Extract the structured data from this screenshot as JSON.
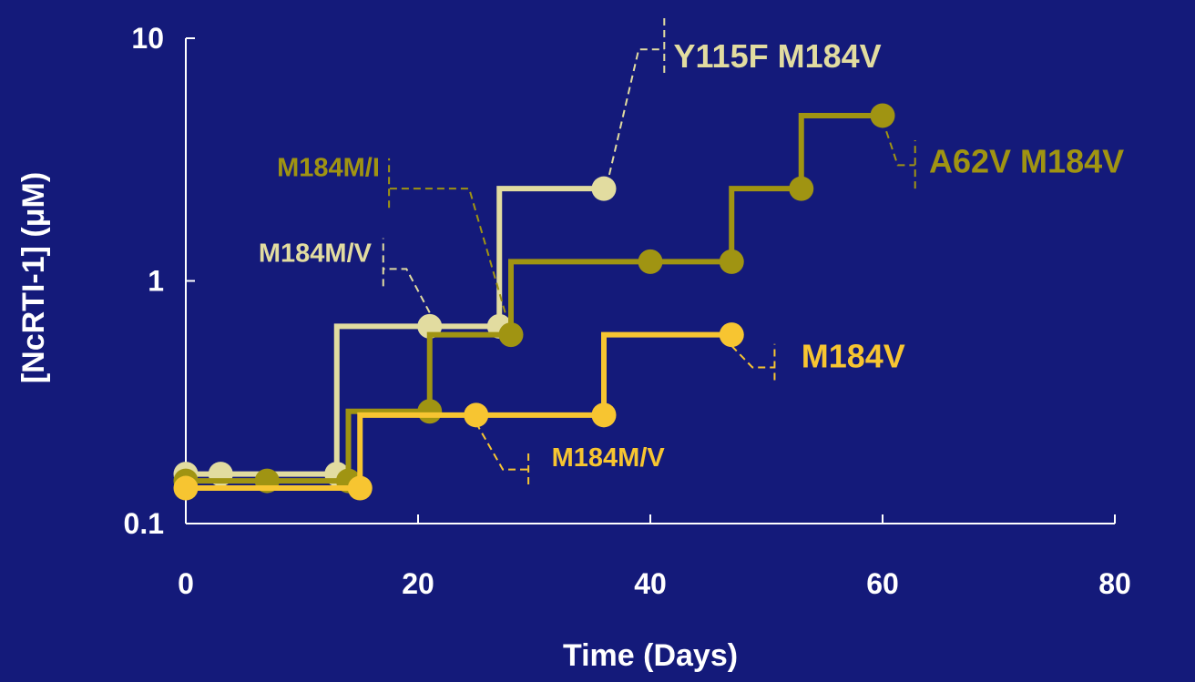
{
  "chart_data": {
    "type": "line",
    "step": true,
    "title": "",
    "xlabel": "Time (Days)",
    "ylabel": "[NcRTI-1] (μM)",
    "xlim": [
      0,
      80
    ],
    "ylim": [
      0.1,
      10
    ],
    "yscale": "log",
    "x_ticks": [
      {
        "value": 0,
        "label": "0"
      },
      {
        "value": 20,
        "label": "20"
      },
      {
        "value": 40,
        "label": "40"
      },
      {
        "value": 60,
        "label": "60"
      },
      {
        "value": 80,
        "label": "80"
      }
    ],
    "y_ticks": [
      {
        "value": 0.1,
        "label": "0.1"
      },
      {
        "value": 1,
        "label": "1"
      },
      {
        "value": 10,
        "label": "10"
      }
    ],
    "grid": false,
    "background": "#141a7a",
    "series": [
      {
        "color": "#e2dca0",
        "points": [
          [
            0,
            0.16
          ],
          [
            3,
            0.16
          ],
          [
            13,
            0.16
          ],
          [
            21,
            0.65
          ],
          [
            27,
            0.65
          ],
          [
            36,
            2.4
          ]
        ],
        "jumps": [
          [
            13,
            0.65
          ],
          [
            27,
            2.4
          ]
        ]
      },
      {
        "color": "#a09412",
        "points": [
          [
            0,
            0.15
          ],
          [
            7,
            0.15
          ],
          [
            14,
            0.15
          ],
          [
            21,
            0.29
          ],
          [
            28,
            0.6
          ],
          [
            40,
            1.2
          ],
          [
            47,
            1.2
          ],
          [
            53,
            2.4
          ],
          [
            60,
            4.8
          ]
        ],
        "jumps": [
          [
            14,
            0.29
          ],
          [
            21,
            0.6
          ],
          [
            28,
            1.2
          ],
          [
            47,
            2.4
          ],
          [
            53,
            4.8
          ]
        ]
      },
      {
        "color": "#f7c531",
        "points": [
          [
            0,
            0.14
          ],
          [
            15,
            0.14
          ],
          [
            25,
            0.28
          ],
          [
            36,
            0.28
          ],
          [
            47,
            0.6
          ]
        ],
        "jumps": [
          [
            15,
            0.28
          ],
          [
            36,
            0.6
          ]
        ]
      }
    ],
    "annotations": [
      {
        "text": "Y115F M184V",
        "color": "#e2dca0",
        "size": 36,
        "x": 42,
        "y": 7.6,
        "leader": [
          [
            36,
            2.2
          ],
          [
            39,
            9.0
          ],
          [
            41.2,
            9.0
          ]
        ],
        "bracket": [
          41.2,
          7.2,
          12.5
        ]
      },
      {
        "text": "A62V M184V",
        "color": "#a09412",
        "size": 36,
        "x": 64,
        "y": 2.8,
        "leader": [
          [
            60,
            4.6
          ],
          [
            61.3,
            3.0
          ],
          [
            62.8,
            3.0
          ]
        ],
        "bracket": [
          62.8,
          2.4,
          3.8
        ]
      },
      {
        "text": "M184M/I",
        "color": "#a09412",
        "size": 29,
        "x": 16.7,
        "y": 2.7,
        "anchor": "end",
        "leader": [
          [
            27.5,
            0.74
          ],
          [
            24.4,
            2.4
          ],
          [
            17.5,
            2.4
          ]
        ],
        "bracket": [
          17.5,
          2.0,
          3.2
        ]
      },
      {
        "text": "M184M/V",
        "color": "#e2dca0",
        "size": 29,
        "x": 16.0,
        "y": 1.2,
        "anchor": "end",
        "leader": [
          [
            21,
            0.74
          ],
          [
            19.0,
            1.12
          ],
          [
            17.0,
            1.12
          ]
        ],
        "bracket": [
          17.0,
          0.95,
          1.5
        ]
      },
      {
        "text": "M184V",
        "color": "#f7c531",
        "size": 36,
        "x": 53,
        "y": 0.44,
        "leader": [
          [
            47,
            0.54
          ],
          [
            48.8,
            0.44
          ],
          [
            50.7,
            0.44
          ]
        ],
        "bracket": [
          50.7,
          0.39,
          0.55
        ]
      },
      {
        "text": "M184M/V",
        "color": "#f7c531",
        "size": 29,
        "x": 31.5,
        "y": 0.172,
        "leader": [
          [
            25,
            0.26
          ],
          [
            27.3,
            0.167
          ],
          [
            29.5,
            0.167
          ]
        ],
        "bracket": [
          29.5,
          0.145,
          0.195
        ]
      }
    ]
  }
}
